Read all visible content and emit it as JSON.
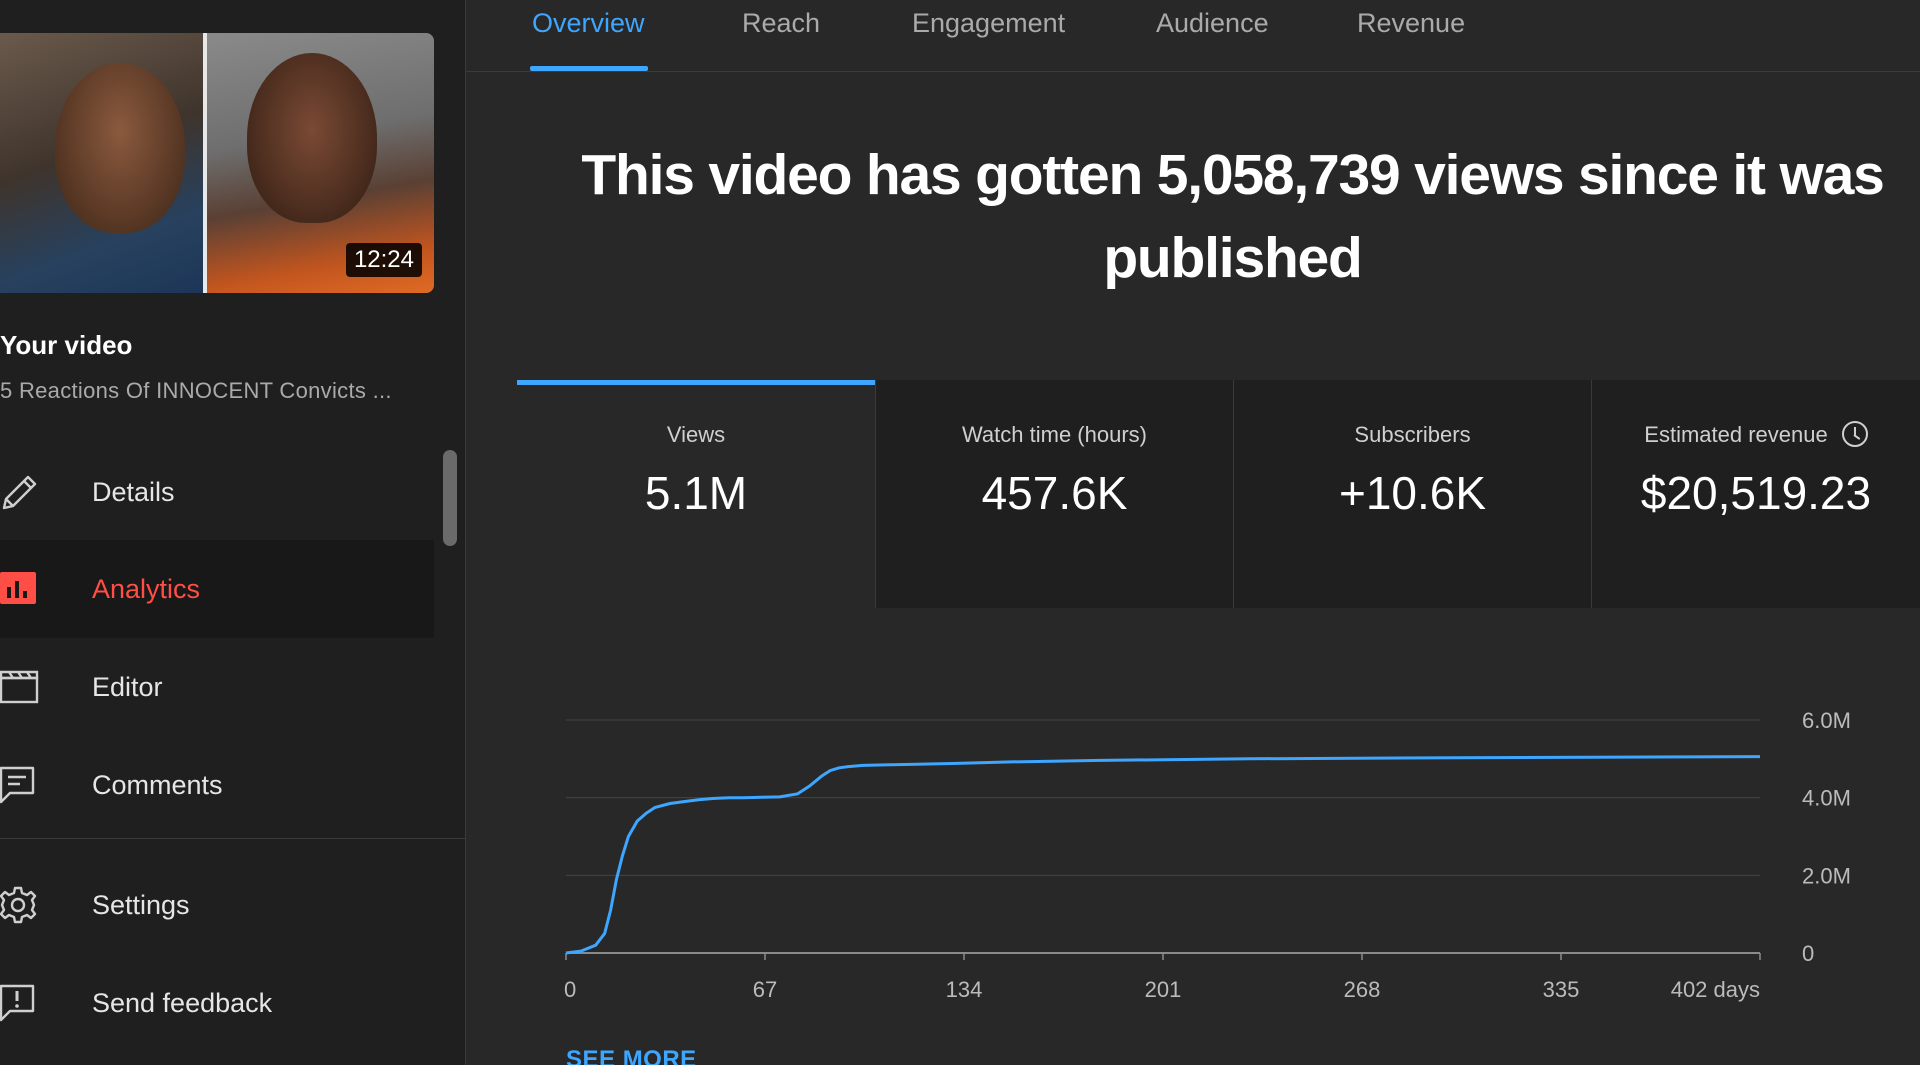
{
  "sidebar": {
    "thumbnail_duration": "12:24",
    "your_video_label": "Your video",
    "video_title": "5 Reactions Of INNOCENT Convicts ...",
    "items": [
      {
        "label": "Details",
        "icon": "pencil-icon"
      },
      {
        "label": "Analytics",
        "icon": "analytics-icon",
        "active": true
      },
      {
        "label": "Editor",
        "icon": "clapperboard-icon"
      },
      {
        "label": "Comments",
        "icon": "comment-icon"
      },
      {
        "label": "Settings",
        "icon": "gear-icon"
      },
      {
        "label": "Send feedback",
        "icon": "feedback-icon"
      }
    ]
  },
  "tabs": [
    {
      "label": "Overview",
      "active": true
    },
    {
      "label": "Reach"
    },
    {
      "label": "Engagement"
    },
    {
      "label": "Audience"
    },
    {
      "label": "Revenue"
    }
  ],
  "headline": "This video has gotten 5,058,739 views since it was published",
  "metrics": [
    {
      "label": "Views",
      "value": "5.1M",
      "active": true
    },
    {
      "label": "Watch time (hours)",
      "value": "457.6K"
    },
    {
      "label": "Subscribers",
      "value": "+10.6K"
    },
    {
      "label": "Estimated revenue",
      "value": "$20,519.23",
      "icon": "clock-icon"
    }
  ],
  "see_more": "SEE MORE",
  "colors": {
    "accent": "#3ea6ff",
    "active_nav": "#ff4e45",
    "background": "#282828",
    "sidebar": "#1f1f1f"
  },
  "chart_data": {
    "type": "line",
    "x_tick_labels": [
      "0",
      "67",
      "134",
      "201",
      "268",
      "335",
      "402 days"
    ],
    "y_tick_labels": [
      "6.0M",
      "4.0M",
      "2.0M",
      "0"
    ],
    "ylim": [
      0,
      6000000
    ],
    "xlim": [
      0,
      402
    ],
    "grid": true,
    "series": [
      {
        "x": [
          0,
          5,
          10,
          13,
          15,
          17,
          19,
          21,
          24,
          27,
          30,
          35,
          40,
          45,
          50,
          55,
          60,
          66,
          72,
          78,
          82,
          86,
          89,
          92,
          95,
          100,
          110,
          130,
          150,
          180,
          230,
          300,
          402
        ],
        "y": [
          0,
          50000,
          200000,
          500000,
          1100000,
          1900000,
          2500000,
          3000000,
          3400000,
          3600000,
          3750000,
          3850000,
          3900000,
          3950000,
          3980000,
          4000000,
          4000000,
          4010000,
          4020000,
          4100000,
          4300000,
          4550000,
          4700000,
          4770000,
          4800000,
          4830000,
          4850000,
          4880000,
          4920000,
          4960000,
          5000000,
          5030000,
          5058739
        ]
      }
    ]
  }
}
